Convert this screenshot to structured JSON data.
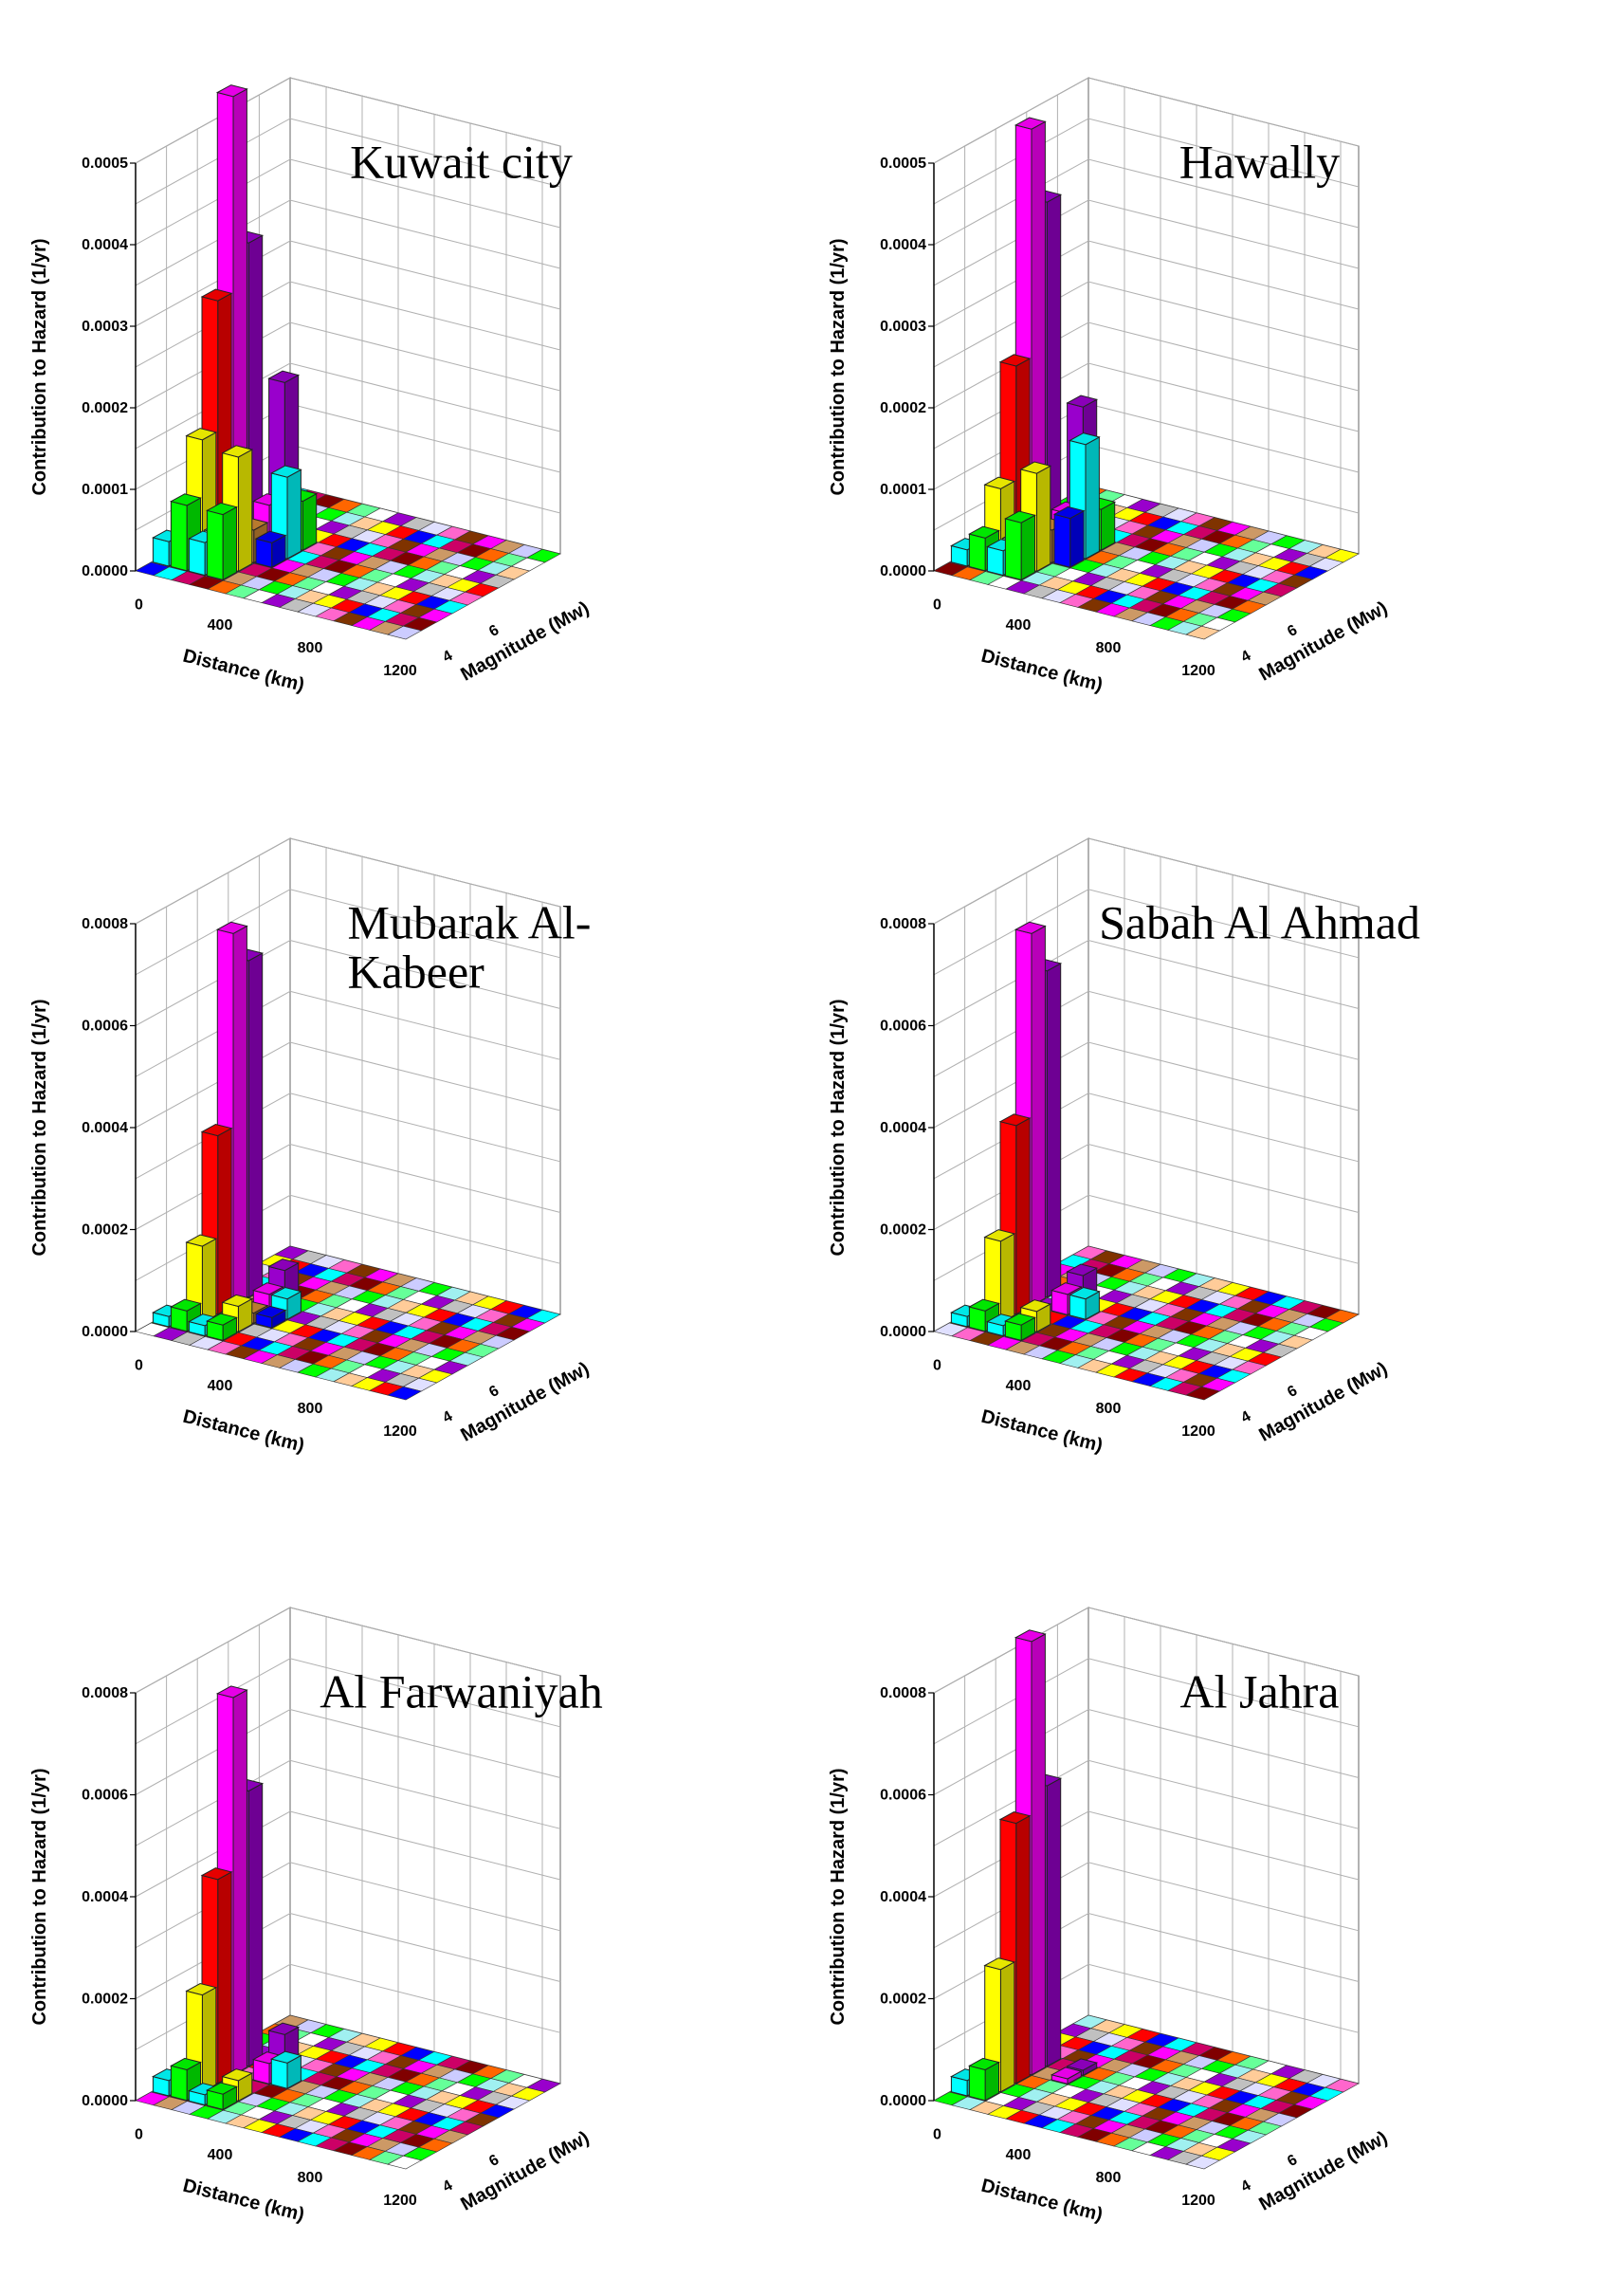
{
  "chart_data": [
    {
      "type": "bar3d",
      "title": [
        "Kuwait city"
      ],
      "ylabel": "Contribution to Hazard (1/yr)",
      "xlabel": "Distance (km)",
      "zlabel": "Magnitude (Mw)",
      "x_ticks": [
        "0",
        "400",
        "800",
        "1200"
      ],
      "z_ticks": [
        "4",
        "6"
      ],
      "y_ticks": [
        "0.0000",
        "0.0001",
        "0.0002",
        "0.0003",
        "0.0004",
        "0.0005"
      ],
      "ylim": [
        0,
        0.0005
      ],
      "bars": [
        {
          "distance_bin": 0,
          "magnitude_bin": 1,
          "value": 3e-05,
          "color": "#00ffff"
        },
        {
          "distance_bin": 1,
          "magnitude_bin": 1,
          "value": 8e-05,
          "color": "#00ff00"
        },
        {
          "distance_bin": 1,
          "magnitude_bin": 2,
          "value": 0.00015,
          "color": "#ffff00"
        },
        {
          "distance_bin": 1,
          "magnitude_bin": 3,
          "value": 0.00031,
          "color": "#ff0000"
        },
        {
          "distance_bin": 1,
          "magnitude_bin": 4,
          "value": 0.00055,
          "color": "#ff00ff"
        },
        {
          "distance_bin": 1,
          "magnitude_bin": 5,
          "value": 0.00036,
          "color": "#9900cc"
        },
        {
          "distance_bin": 2,
          "magnitude_bin": 1,
          "value": 4e-05,
          "color": "#00ffff"
        },
        {
          "distance_bin": 2,
          "magnitude_bin": 2,
          "value": 4e-05,
          "color": "#aaffff"
        },
        {
          "distance_bin": 3,
          "magnitude_bin": 1,
          "value": 8e-05,
          "color": "#00ff00"
        },
        {
          "distance_bin": 3,
          "magnitude_bin": 2,
          "value": 0.00014,
          "color": "#ffff00"
        },
        {
          "distance_bin": 3,
          "magnitude_bin": 3,
          "value": 4e-05,
          "color": "#cc8833"
        },
        {
          "distance_bin": 3,
          "magnitude_bin": 4,
          "value": 6e-05,
          "color": "#ff00ff"
        },
        {
          "distance_bin": 3,
          "magnitude_bin": 5,
          "value": 0.0002,
          "color": "#9900cc"
        },
        {
          "distance_bin": 4,
          "magnitude_bin": 3,
          "value": 3e-05,
          "color": "#0000ff"
        },
        {
          "distance_bin": 4,
          "magnitude_bin": 4,
          "value": 0.0001,
          "color": "#00ffff"
        },
        {
          "distance_bin": 4,
          "magnitude_bin": 5,
          "value": 6e-05,
          "color": "#00ff00"
        }
      ]
    },
    {
      "type": "bar3d",
      "title": [
        "Hawally"
      ],
      "ylabel": "Contribution to Hazard (1/yr)",
      "xlabel": "Distance (km)",
      "zlabel": "Magnitude (Mw)",
      "x_ticks": [
        "0",
        "400",
        "800",
        "1200"
      ],
      "z_ticks": [
        "4",
        "6"
      ],
      "y_ticks": [
        "0.0000",
        "0.0001",
        "0.0002",
        "0.0003",
        "0.0004",
        "0.0005"
      ],
      "ylim": [
        0,
        0.0005
      ],
      "bars": [
        {
          "distance_bin": 0,
          "magnitude_bin": 1,
          "value": 2e-05,
          "color": "#00ffff"
        },
        {
          "distance_bin": 1,
          "magnitude_bin": 1,
          "value": 4e-05,
          "color": "#00ff00"
        },
        {
          "distance_bin": 1,
          "magnitude_bin": 2,
          "value": 9e-05,
          "color": "#ffff00"
        },
        {
          "distance_bin": 1,
          "magnitude_bin": 3,
          "value": 0.00023,
          "color": "#ff0000"
        },
        {
          "distance_bin": 1,
          "magnitude_bin": 4,
          "value": 0.00051,
          "color": "#ff00ff"
        },
        {
          "distance_bin": 1,
          "magnitude_bin": 5,
          "value": 0.00041,
          "color": "#9900cc"
        },
        {
          "distance_bin": 2,
          "magnitude_bin": 1,
          "value": 3e-05,
          "color": "#00ffff"
        },
        {
          "distance_bin": 2,
          "magnitude_bin": 2,
          "value": 3e-05,
          "color": "#aaffff"
        },
        {
          "distance_bin": 3,
          "magnitude_bin": 1,
          "value": 7e-05,
          "color": "#00ff00"
        },
        {
          "distance_bin": 3,
          "magnitude_bin": 2,
          "value": 0.00012,
          "color": "#ffff00"
        },
        {
          "distance_bin": 3,
          "magnitude_bin": 3,
          "value": 4e-05,
          "color": "#cc8833"
        },
        {
          "distance_bin": 3,
          "magnitude_bin": 4,
          "value": 5e-05,
          "color": "#ff00ff"
        },
        {
          "distance_bin": 3,
          "magnitude_bin": 5,
          "value": 0.00017,
          "color": "#9900cc"
        },
        {
          "distance_bin": 4,
          "magnitude_bin": 3,
          "value": 6e-05,
          "color": "#0000ff"
        },
        {
          "distance_bin": 4,
          "magnitude_bin": 4,
          "value": 0.00014,
          "color": "#00ffff"
        },
        {
          "distance_bin": 4,
          "magnitude_bin": 5,
          "value": 5e-05,
          "color": "#00ff00"
        }
      ]
    },
    {
      "type": "bar3d",
      "title": [
        "Mubarak Al-",
        "Kabeer"
      ],
      "ylabel": "Contribution to Hazard (1/yr)",
      "xlabel": "Distance (km)",
      "zlabel": "Magnitude (Mw)",
      "x_ticks": [
        "0",
        "400",
        "800",
        "1200"
      ],
      "z_ticks": [
        "4",
        "6"
      ],
      "y_ticks": [
        "0.0000",
        "0.0002",
        "0.0004",
        "0.0006",
        "0.0008"
      ],
      "ylim": [
        0,
        0.0008
      ],
      "bars": [
        {
          "distance_bin": 0,
          "magnitude_bin": 1,
          "value": 2e-05,
          "color": "#00ffff"
        },
        {
          "distance_bin": 1,
          "magnitude_bin": 1,
          "value": 4e-05,
          "color": "#00ff00"
        },
        {
          "distance_bin": 1,
          "magnitude_bin": 2,
          "value": 0.00015,
          "color": "#ffff00"
        },
        {
          "distance_bin": 1,
          "magnitude_bin": 3,
          "value": 0.00035,
          "color": "#ff0000"
        },
        {
          "distance_bin": 1,
          "magnitude_bin": 4,
          "value": 0.00073,
          "color": "#ff00ff"
        },
        {
          "distance_bin": 1,
          "magnitude_bin": 5,
          "value": 0.00066,
          "color": "#9900cc"
        },
        {
          "distance_bin": 2,
          "magnitude_bin": 1,
          "value": 2e-05,
          "color": "#00ffff"
        },
        {
          "distance_bin": 3,
          "magnitude_bin": 1,
          "value": 3e-05,
          "color": "#00ff00"
        },
        {
          "distance_bin": 3,
          "magnitude_bin": 2,
          "value": 5e-05,
          "color": "#ffff00"
        },
        {
          "distance_bin": 3,
          "magnitude_bin": 3,
          "value": 2e-05,
          "color": "#cc8833"
        },
        {
          "distance_bin": 3,
          "magnitude_bin": 4,
          "value": 4e-05,
          "color": "#ff00ff"
        },
        {
          "distance_bin": 3,
          "magnitude_bin": 5,
          "value": 7e-05,
          "color": "#9900cc"
        },
        {
          "distance_bin": 4,
          "magnitude_bin": 3,
          "value": 2e-05,
          "color": "#0000ff"
        },
        {
          "distance_bin": 4,
          "magnitude_bin": 4,
          "value": 4e-05,
          "color": "#00ffff"
        }
      ]
    },
    {
      "type": "bar3d",
      "title": [
        "Sabah Al Ahmad"
      ],
      "ylabel": "Contribution to Hazard (1/yr)",
      "xlabel": "Distance (km)",
      "zlabel": "Magnitude (Mw)",
      "x_ticks": [
        "0",
        "400",
        "800",
        "1200"
      ],
      "z_ticks": [
        "4",
        "6"
      ],
      "y_ticks": [
        "0.0000",
        "0.0002",
        "0.0004",
        "0.0006",
        "0.0008"
      ],
      "ylim": [
        0,
        0.0008
      ],
      "bars": [
        {
          "distance_bin": 0,
          "magnitude_bin": 1,
          "value": 2e-05,
          "color": "#00ffff"
        },
        {
          "distance_bin": 1,
          "magnitude_bin": 1,
          "value": 4e-05,
          "color": "#00ff00"
        },
        {
          "distance_bin": 1,
          "magnitude_bin": 2,
          "value": 0.00016,
          "color": "#ffff00"
        },
        {
          "distance_bin": 1,
          "magnitude_bin": 3,
          "value": 0.00037,
          "color": "#ff0000"
        },
        {
          "distance_bin": 1,
          "magnitude_bin": 4,
          "value": 0.00073,
          "color": "#ff00ff"
        },
        {
          "distance_bin": 1,
          "magnitude_bin": 5,
          "value": 0.00064,
          "color": "#9900cc"
        },
        {
          "distance_bin": 2,
          "magnitude_bin": 1,
          "value": 2e-05,
          "color": "#00ffff"
        },
        {
          "distance_bin": 3,
          "magnitude_bin": 1,
          "value": 3e-05,
          "color": "#00ff00"
        },
        {
          "distance_bin": 3,
          "magnitude_bin": 2,
          "value": 4e-05,
          "color": "#ffff00"
        },
        {
          "distance_bin": 3,
          "magnitude_bin": 4,
          "value": 4e-05,
          "color": "#ff00ff"
        },
        {
          "distance_bin": 3,
          "magnitude_bin": 5,
          "value": 6e-05,
          "color": "#9900cc"
        },
        {
          "distance_bin": 4,
          "magnitude_bin": 4,
          "value": 4e-05,
          "color": "#00ffff"
        }
      ]
    },
    {
      "type": "bar3d",
      "title": [
        "Al Farwaniyah"
      ],
      "ylabel": "Contribution to Hazard (1/yr)",
      "xlabel": "Distance (km)",
      "zlabel": "Magnitude (Mw)",
      "x_ticks": [
        "0",
        "400",
        "800",
        "1200"
      ],
      "z_ticks": [
        "4",
        "6"
      ],
      "y_ticks": [
        "0.0000",
        "0.0002",
        "0.0004",
        "0.0006",
        "0.0008"
      ],
      "ylim": [
        0,
        0.0008
      ],
      "bars": [
        {
          "distance_bin": 0,
          "magnitude_bin": 1,
          "value": 3e-05,
          "color": "#00ffff"
        },
        {
          "distance_bin": 1,
          "magnitude_bin": 1,
          "value": 6e-05,
          "color": "#00ff00"
        },
        {
          "distance_bin": 1,
          "magnitude_bin": 2,
          "value": 0.00019,
          "color": "#ffff00"
        },
        {
          "distance_bin": 1,
          "magnitude_bin": 3,
          "value": 0.0004,
          "color": "#ff0000"
        },
        {
          "distance_bin": 1,
          "magnitude_bin": 4,
          "value": 0.00074,
          "color": "#ff00ff"
        },
        {
          "distance_bin": 1,
          "magnitude_bin": 5,
          "value": 0.00054,
          "color": "#9900cc"
        },
        {
          "distance_bin": 2,
          "magnitude_bin": 1,
          "value": 2e-05,
          "color": "#00ffff"
        },
        {
          "distance_bin": 3,
          "magnitude_bin": 1,
          "value": 3e-05,
          "color": "#00ff00"
        },
        {
          "distance_bin": 3,
          "magnitude_bin": 2,
          "value": 4e-05,
          "color": "#ffff00"
        },
        {
          "distance_bin": 3,
          "magnitude_bin": 4,
          "value": 4e-05,
          "color": "#ff00ff"
        },
        {
          "distance_bin": 3,
          "magnitude_bin": 5,
          "value": 8e-05,
          "color": "#9900cc"
        },
        {
          "distance_bin": 4,
          "magnitude_bin": 4,
          "value": 5e-05,
          "color": "#00ffff"
        }
      ]
    },
    {
      "type": "bar3d",
      "title": [
        "Al Jahra"
      ],
      "ylabel": "Contribution to Hazard (1/yr)",
      "xlabel": "Distance (km)",
      "zlabel": "Magnitude (Mw)",
      "x_ticks": [
        "0",
        "400",
        "800",
        "1200"
      ],
      "z_ticks": [
        "4",
        "6"
      ],
      "y_ticks": [
        "0.0000",
        "0.0002",
        "0.0004",
        "0.0006",
        "0.0008"
      ],
      "ylim": [
        0,
        0.0008
      ],
      "bars": [
        {
          "distance_bin": 0,
          "magnitude_bin": 1,
          "value": 3e-05,
          "color": "#00ffff"
        },
        {
          "distance_bin": 1,
          "magnitude_bin": 1,
          "value": 6e-05,
          "color": "#00ff00"
        },
        {
          "distance_bin": 1,
          "magnitude_bin": 2,
          "value": 0.00024,
          "color": "#ffff00"
        },
        {
          "distance_bin": 1,
          "magnitude_bin": 3,
          "value": 0.00051,
          "color": "#ff0000"
        },
        {
          "distance_bin": 1,
          "magnitude_bin": 4,
          "value": 0.00085,
          "color": "#ff00ff"
        },
        {
          "distance_bin": 1,
          "magnitude_bin": 5,
          "value": 0.00055,
          "color": "#9900cc"
        },
        {
          "distance_bin": 3,
          "magnitude_bin": 4,
          "value": 1e-05,
          "color": "#ff00ff"
        },
        {
          "distance_bin": 3,
          "magnitude_bin": 5,
          "value": 1e-05,
          "color": "#9900cc"
        }
      ]
    }
  ]
}
